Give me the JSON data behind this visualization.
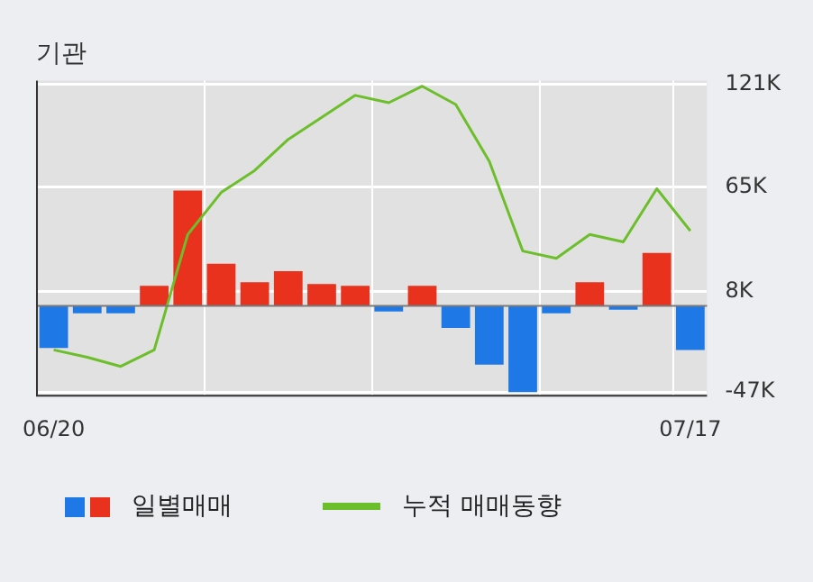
{
  "chart_data": {
    "type": "bar",
    "title": "기관",
    "categories": [
      "06/20",
      null,
      null,
      null,
      null,
      null,
      null,
      null,
      null,
      null,
      null,
      null,
      null,
      null,
      null,
      null,
      null,
      null,
      null,
      "07/17"
    ],
    "series": [
      {
        "name": "일별매매",
        "colors": [
          "#1e78e6",
          "#1e78e6",
          "#1e78e6",
          "#e8321e",
          "#e8321e",
          "#e8321e",
          "#e8321e",
          "#e8321e",
          "#e8321e",
          "#e8321e",
          "#1e78e6",
          "#e8321e",
          "#1e78e6",
          "#1e78e6",
          "#1e78e6",
          "#1e78e6",
          "#e8321e",
          "#1e78e6",
          "#e8321e",
          "#1e78e6"
        ],
        "values": [
          -23,
          -4,
          -4,
          11,
          63,
          23,
          13,
          19,
          12,
          11,
          -3,
          11,
          -12,
          -32,
          -47,
          -4,
          13,
          -2,
          29,
          -24
        ]
      },
      {
        "name": "누적 매매동향",
        "type": "line",
        "color": "#6cbf2a",
        "values": [
          -24,
          -28,
          -33,
          -24,
          39,
          62,
          74,
          91,
          103,
          115,
          111,
          120,
          110,
          79,
          30,
          26,
          39,
          35,
          64,
          41
        ]
      }
    ],
    "ylim": [
      -49,
      123
    ],
    "yticks": [
      {
        "value": -47,
        "label": "-47K"
      },
      {
        "value": 8,
        "label": "8K"
      },
      {
        "value": 65,
        "label": "65K"
      },
      {
        "value": 121,
        "label": "121K"
      }
    ],
    "grid": true,
    "legend": "bottom"
  }
}
